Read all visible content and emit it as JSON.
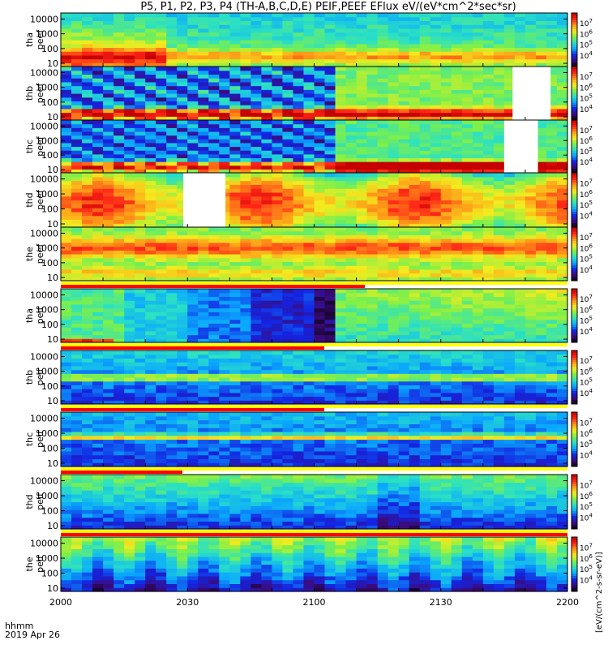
{
  "title": "P5, P1, P2, P3, P4 (TH-A,B,C,D,E) PEIF,PEEF EFlux eV/(eV*cm^2*sec*sr)",
  "footer": {
    "time_format": "hhmm",
    "date": "2019 Apr 26"
  },
  "colorbar_unit": "[eV/(cm^2-s-sr-eV)]",
  "chart_data": {
    "type": "heatmap",
    "x_ticks": [
      "2000",
      "2030",
      "2100",
      "2130",
      "2200"
    ],
    "x_range_minutes": [
      0,
      120
    ],
    "y_scale": "log",
    "y_range": [
      10,
      20000
    ],
    "y_ticks": [
      "10",
      "100",
      "1000",
      "10000"
    ],
    "colorbar_ticks": [
      "10^4",
      "10^5",
      "10^6",
      "10^7"
    ],
    "colormap": [
      "#000000",
      "#3c0b7c",
      "#1424e2",
      "#0aa7ff",
      "#29e0c6",
      "#7df04a",
      "#f3ec1e",
      "#ff9a18",
      "#ff2418",
      "#c30000"
    ],
    "panels": [
      {
        "label_top": "tha",
        "label_bottom": "peef",
        "species": "electrons",
        "probe": "A",
        "has_gap": false
      },
      {
        "label_top": "thb",
        "label_bottom": "peef",
        "species": "electrons",
        "probe": "B",
        "has_gap": true,
        "gap_minutes": [
          107,
          116
        ]
      },
      {
        "label_top": "thc",
        "label_bottom": "peef",
        "species": "electrons",
        "probe": "C",
        "has_gap": true,
        "gap_minutes": [
          105,
          113
        ]
      },
      {
        "label_top": "thd",
        "label_bottom": "peef",
        "species": "electrons",
        "probe": "D",
        "has_gap": true,
        "gap_minutes": [
          29,
          39
        ]
      },
      {
        "label_top": "the",
        "label_bottom": "peef",
        "species": "electrons",
        "probe": "E",
        "has_gap": false
      },
      {
        "label_top": "tha",
        "label_bottom": "peif",
        "species": "ions",
        "probe": "A",
        "has_gap": false
      },
      {
        "label_top": "thb",
        "label_bottom": "peif",
        "species": "ions",
        "probe": "B",
        "has_gap": false
      },
      {
        "label_top": "thc",
        "label_bottom": "peif",
        "species": "ions",
        "probe": "C",
        "has_gap": false
      },
      {
        "label_top": "thd",
        "label_bottom": "peif",
        "species": "ions",
        "probe": "D",
        "has_gap": false
      },
      {
        "label_top": "the",
        "label_bottom": "peif",
        "species": "ions",
        "probe": "E",
        "has_gap": false
      }
    ]
  }
}
